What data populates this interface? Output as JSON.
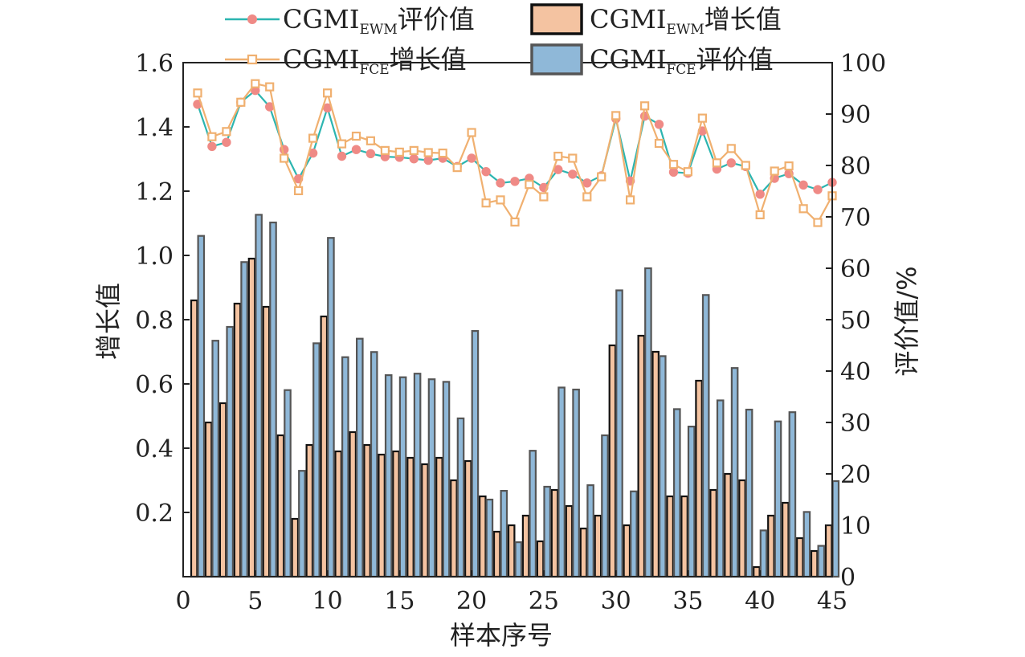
{
  "chart_data": {
    "type": "bar",
    "xlabel": "样本序号",
    "ylabel_left": "增长值",
    "ylabel_right": "评价值/%",
    "xlim": [
      0,
      45
    ],
    "ylim_left": [
      0,
      1.6
    ],
    "ylim_right": [
      0,
      100
    ],
    "x_ticks": [
      "0",
      "5",
      "10",
      "15",
      "20",
      "25",
      "30",
      "35",
      "40",
      "45"
    ],
    "y_left_ticks": [
      "0.2",
      "0.4",
      "0.6",
      "0.8",
      "1.0",
      "1.2",
      "1.4",
      "1.6"
    ],
    "y_right_ticks": [
      "0",
      "10",
      "20",
      "30",
      "40",
      "50",
      "60",
      "70",
      "80",
      "90",
      "100"
    ],
    "legend_position": "top",
    "x": [
      1,
      2,
      3,
      4,
      5,
      6,
      7,
      8,
      9,
      10,
      11,
      12,
      13,
      14,
      15,
      16,
      17,
      18,
      19,
      20,
      21,
      22,
      23,
      24,
      25,
      26,
      27,
      28,
      29,
      30,
      31,
      32,
      33,
      34,
      35,
      36,
      37,
      38,
      39,
      40,
      41,
      42,
      43,
      44,
      45
    ],
    "series": [
      {
        "name": "CGMI_EWM增长值",
        "legend": {
          "main": "CGMI",
          "sub": "EWM",
          "suffix": "增长值"
        },
        "kind": "bar",
        "axis": "left",
        "color": "#f4c3a1",
        "edge": "#111111",
        "values": [
          0.86,
          0.48,
          0.54,
          0.85,
          0.99,
          0.84,
          0.44,
          0.18,
          0.41,
          0.81,
          0.39,
          0.45,
          0.41,
          0.38,
          0.39,
          0.37,
          0.35,
          0.37,
          0.3,
          0.36,
          0.25,
          0.14,
          0.16,
          0.19,
          0.11,
          0.27,
          0.22,
          0.15,
          0.19,
          0.72,
          0.16,
          0.75,
          0.7,
          0.25,
          0.25,
          0.61,
          0.27,
          0.32,
          0.3,
          0.03,
          0.19,
          0.23,
          0.12,
          0.08,
          0.16
        ]
      },
      {
        "name": "CGMI_FCE评价值",
        "legend": {
          "main": "CGMI",
          "sub": "FCE",
          "suffix": "评价值"
        },
        "kind": "bar",
        "axis": "right",
        "color": "#8fb8d8",
        "edge": "#555555",
        "values": [
          66.3,
          45.9,
          48.6,
          61.2,
          70.4,
          68.9,
          36.3,
          20.6,
          45.4,
          65.9,
          42.7,
          46.3,
          43.7,
          39.2,
          38.8,
          39.5,
          38.4,
          37.9,
          30.8,
          47.8,
          15.0,
          16.7,
          6.7,
          24.5,
          17.5,
          36.8,
          36.4,
          17.8,
          27.5,
          55.7,
          16.6,
          60.0,
          42.9,
          32.6,
          29.2,
          54.8,
          34.3,
          40.6,
          32.5,
          9.0,
          30.2,
          32.0,
          12.6,
          6.0,
          18.6
        ]
      },
      {
        "name": "CGMI_EWM评价值",
        "legend": {
          "main": "CGMI",
          "sub": "EWM",
          "suffix": "评价值"
        },
        "kind": "line",
        "axis": "right",
        "color": "#2cb5b0",
        "marker": "circle",
        "marker_color": "#ef8a86",
        "values": [
          91.9,
          83.7,
          84.5,
          92.3,
          94.6,
          91.4,
          83.1,
          77.4,
          82.4,
          91.2,
          81.8,
          83.1,
          82.3,
          81.7,
          81.6,
          81.3,
          81.0,
          81.4,
          79.8,
          81.4,
          78.8,
          76.6,
          76.9,
          77.5,
          75.7,
          79.2,
          78.3,
          76.6,
          78.0,
          89.1,
          77.0,
          89.6,
          88.0,
          78.7,
          78.5,
          86.7,
          79.3,
          80.5,
          79.8,
          74.4,
          77.5,
          78.4,
          76.2,
          75.3,
          76.7
        ]
      },
      {
        "name": "CGMI_FCE增长值",
        "legend": {
          "main": "CGMI",
          "sub": "FCE",
          "suffix": "增长值"
        },
        "kind": "line",
        "axis": "right",
        "color": "#f0b070",
        "marker": "square",
        "marker_color": "#f0b070",
        "values": [
          94.1,
          85.6,
          86.6,
          92.3,
          95.9,
          95.3,
          81.4,
          75.1,
          85.3,
          94.1,
          84.2,
          85.7,
          84.8,
          82.9,
          82.6,
          82.9,
          82.5,
          82.4,
          79.6,
          86.4,
          72.7,
          73.3,
          69.0,
          76.3,
          73.9,
          81.8,
          81.4,
          73.9,
          77.8,
          89.7,
          73.3,
          91.6,
          84.3,
          80.2,
          78.8,
          89.2,
          80.5,
          83.3,
          80.0,
          70.4,
          78.9,
          79.9,
          71.6,
          68.9,
          74.1
        ]
      }
    ]
  }
}
